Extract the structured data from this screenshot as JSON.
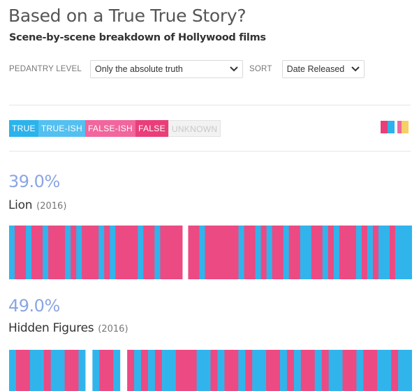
{
  "header": {
    "title": "Based on a True True Story?",
    "subtitle": "Scene-by-scene breakdown of Hollywood films"
  },
  "controls": {
    "pedantry_label": "PEDANTRY LEVEL",
    "pedantry_value": "Only the absolute truth",
    "sort_label": "SORT",
    "sort_value": "Date Released"
  },
  "legend": {
    "items": [
      {
        "label": "TRUE",
        "color": "#2bb3ec"
      },
      {
        "label": "TRUE-ISH",
        "color": "#53c0f0"
      },
      {
        "label": "FALSE-ISH",
        "color": "#f0669d"
      },
      {
        "label": "FALSE",
        "color": "#e93e7a"
      },
      {
        "label": "UNKNOWN",
        "color": "#f2f2f2"
      }
    ],
    "swatch_colors": [
      "#e93e7a",
      "#2bb3ec",
      "#f0669d",
      "#f5d066"
    ]
  },
  "colors": {
    "true": "#31b4ec",
    "false": "#ec4a82",
    "unknown": "#ffffff",
    "percent": "#8aa6e2"
  },
  "films": [
    {
      "percent": "39.0%",
      "title": "Lion",
      "year": "(2016)",
      "scenes": [
        "T",
        "F",
        "F",
        "T",
        "F",
        "F",
        "T",
        "F",
        "F",
        "F",
        "T",
        "F",
        "T",
        "F",
        "F",
        "F",
        "T",
        "F",
        "T",
        "F",
        "F",
        "F",
        "F",
        "T",
        "F",
        "F",
        "T",
        "F",
        "F",
        "F",
        "F",
        "U",
        "F",
        "F",
        "T",
        "F",
        "F",
        "F",
        "F",
        "F",
        "F",
        "T",
        "F",
        "F",
        "T",
        "F",
        "T",
        "F",
        "F",
        "T",
        "F",
        "F",
        "T",
        "T",
        "F",
        "F",
        "T",
        "F",
        "T",
        "F",
        "F",
        "F",
        "T",
        "F",
        "T",
        "F",
        "T",
        "T",
        "F",
        "T",
        "T",
        "T"
      ]
    },
    {
      "percent": "49.0%",
      "title": "Hidden Figures",
      "year": "(2016)",
      "scenes": [
        "T",
        "F",
        "F",
        "T",
        "T",
        "F",
        "T",
        "T",
        "F",
        "F",
        "T",
        "U",
        "T",
        "F",
        "F",
        "T",
        "U",
        "F",
        "T",
        "F",
        "T",
        "F",
        "T",
        "T",
        "F",
        "F",
        "F",
        "T",
        "T",
        "F",
        "T",
        "F",
        "F",
        "T",
        "F",
        "T",
        "T",
        "F",
        "F",
        "T",
        "F",
        "T",
        "F",
        "F",
        "T",
        "F",
        "T",
        "T",
        "F",
        "F",
        "T",
        "F",
        "F",
        "T",
        "T",
        "F",
        "T",
        "T"
      ]
    }
  ]
}
